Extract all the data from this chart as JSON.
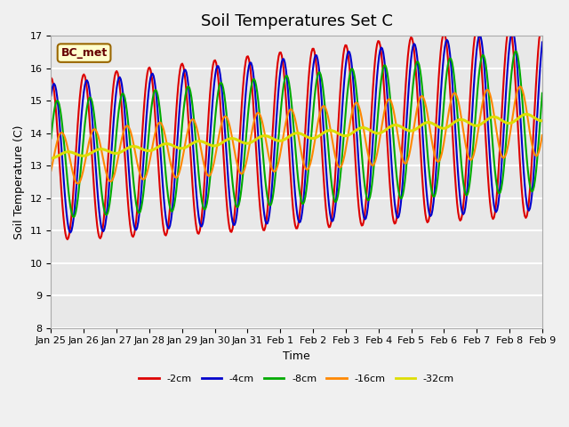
{
  "title": "Soil Temperatures Set C",
  "xlabel": "Time",
  "ylabel": "Soil Temperature (C)",
  "ylim": [
    8.0,
    17.0
  ],
  "yticks": [
    8.0,
    9.0,
    10.0,
    11.0,
    12.0,
    13.0,
    14.0,
    15.0,
    16.0,
    17.0
  ],
  "xtick_labels": [
    "Jan 25",
    "Jan 26",
    "Jan 27",
    "Jan 28",
    "Jan 29",
    "Jan 30",
    "Jan 31",
    "Feb 1",
    "Feb 2",
    "Feb 3",
    "Feb 4",
    "Feb 5",
    "Feb 6",
    "Feb 7",
    "Feb 8",
    "Feb 9"
  ],
  "annotation_text": "BC_met",
  "annotation_bbox": {
    "boxstyle": "round,pad=0.3",
    "facecolor": "#ffffcc",
    "edgecolor": "#996600",
    "linewidth": 1.5
  },
  "legend_entries": [
    "-2cm",
    "-4cm",
    "-8cm",
    "-16cm",
    "-32cm"
  ],
  "line_colors": [
    "#dd0000",
    "#0000cc",
    "#00aa00",
    "#ff8800",
    "#dddd00"
  ],
  "line_widths": [
    1.5,
    1.5,
    1.5,
    1.5,
    2.2
  ],
  "background_color": "#f0f0f0",
  "plot_bg_color": "#e8e8e8",
  "grid_color": "#ffffff",
  "title_fontsize": 13,
  "label_fontsize": 9,
  "tick_fontsize": 8
}
